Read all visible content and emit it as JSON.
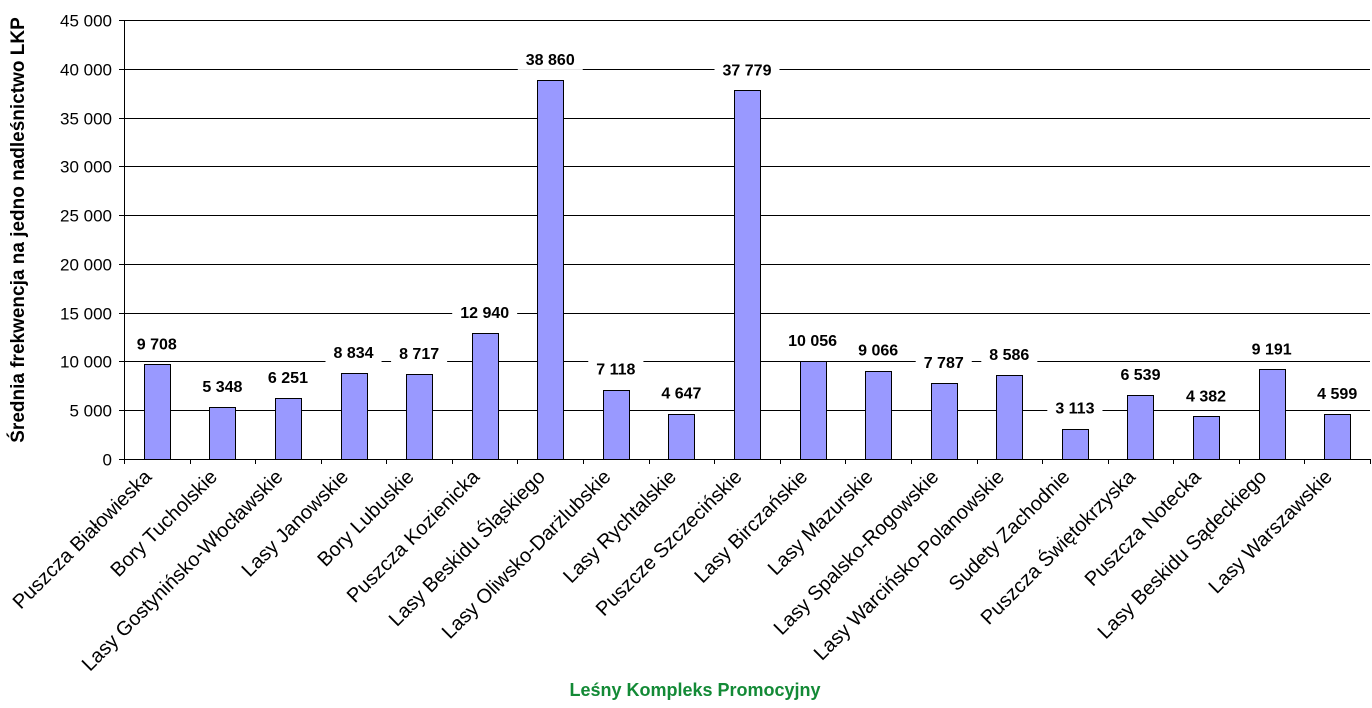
{
  "chart_data": {
    "type": "bar",
    "xlabel": "Leśny Kompleks Promocyjny",
    "ylabel": "Średnia frekwencja na jedno nadleśnictwo LKP",
    "categories": [
      "Puszcza Białowieska",
      "Bory Tucholskie",
      "Lasy Gostynińsko-Włocławskie",
      "Lasy Janowskie",
      "Bory Lubuskie",
      "Puszcza Kozienicka",
      "Lasy Beskidu Śląskiego",
      "Lasy Oliwsko-Darżlubskie",
      "Lasy Rychtalskie",
      "Puszcze Szczecińskie",
      "Lasy Birczańskie",
      "Lasy Mazurskie",
      "Lasy Spalsko-Rogowskie",
      "Lasy Warcińsko-Polanowskie",
      "Sudety Zachodnie",
      "Puszcza Świętokrzyska",
      "Puszcza Notecka",
      "Lasy Beskidu Sądeckiego",
      "Lasy Warszawskie"
    ],
    "values": [
      9708,
      5348,
      6251,
      8834,
      8717,
      12940,
      38860,
      7118,
      4647,
      37779,
      10056,
      9066,
      7787,
      8586,
      3113,
      6539,
      4382,
      9191,
      4599
    ],
    "ylim": [
      0,
      45000
    ],
    "yticks": [
      0,
      5000,
      10000,
      15000,
      20000,
      25000,
      30000,
      35000,
      40000,
      45000
    ],
    "grid": true,
    "data_labels": true,
    "colors": {
      "bar_fill": "#9999FF",
      "bar_stroke": "#000000",
      "xlabel": "#138A36"
    }
  }
}
